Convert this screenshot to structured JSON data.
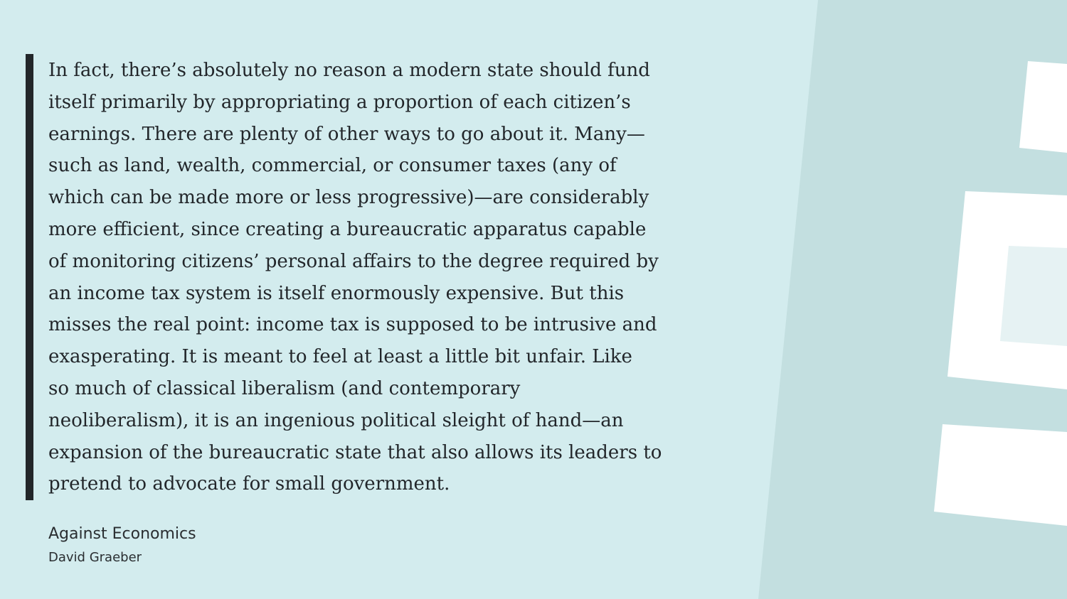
{
  "quote": {
    "lines": [
      "In fact, there’s absolutely no reason a modern state should fund",
      "itself primarily by appropriating a proportion of each citizen’s",
      "earnings. There are plenty of other ways to go about it. Many—",
      "such as land, wealth, commercial, or consumer taxes (any of",
      "which can be made more or less progressive)—are considerably",
      "more efficient, since creating a bureaucratic apparatus capable",
      "of monitoring citizens’ personal affairs to the degree required by",
      "an income tax system is itself enormously expensive. But this",
      "misses the real point: income tax is supposed to be intrusive and",
      "exasperating. It is meant to feel at least a little bit unfair. Like",
      "so much of classical liberalism (and contemporary",
      "neoliberalism), it is an ingenious political sleight of hand—an",
      "expansion of the bureaucratic state that also allows its leaders to",
      "pretend to advocate for small government."
    ]
  },
  "source": {
    "title": "Against Economics",
    "author": "David Graeber"
  },
  "colors": {
    "background": "#d3ecee",
    "right_panel": "#c3dfe0",
    "quote_bar": "#222629",
    "text": "#22262a"
  }
}
